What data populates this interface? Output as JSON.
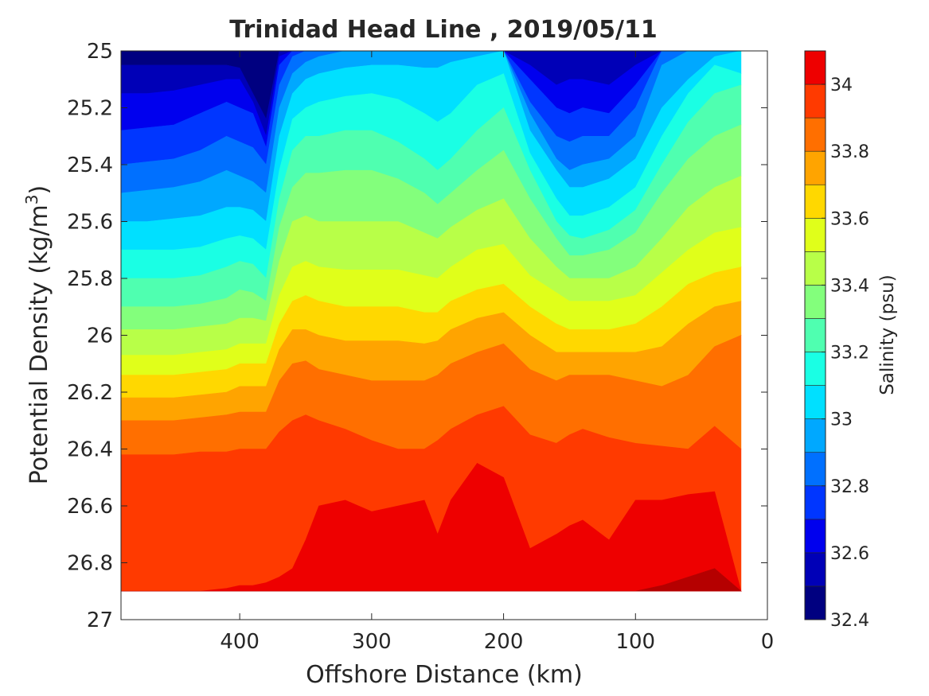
{
  "chart_data": {
    "type": "filled-contour",
    "title": "Trinidad Head Line , 2019/05/11",
    "xlabel": "Offshore Distance (km)",
    "ylabel": "Potential Density (kg/m",
    "ylabel_sup": "3",
    "ylabel_close": ")",
    "xlim": [
      490,
      0
    ],
    "ylim": [
      25,
      27
    ],
    "x_reversed": true,
    "y_reversed": true,
    "x_ticks": [
      400,
      300,
      200,
      100,
      0
    ],
    "y_ticks": [
      25,
      25.2,
      25.4,
      25.6,
      25.8,
      26,
      26.2,
      26.4,
      26.6,
      26.8,
      27
    ],
    "x_tick_labels": [
      "400",
      "300",
      "200",
      "100",
      "0"
    ],
    "y_tick_labels": [
      "25",
      "25.2",
      "25.4",
      "25.6",
      "25.8",
      "26",
      "26.2",
      "26.4",
      "26.6",
      "26.8",
      "27"
    ],
    "colorbar": {
      "label": "Salinity (psu)",
      "range": [
        32.4,
        34.1
      ],
      "ticks": [
        32.4,
        32.6,
        32.8,
        33,
        33.2,
        33.4,
        33.6,
        33.8,
        34
      ],
      "tick_labels": [
        "32.4",
        "32.6",
        "32.8",
        "33",
        "33.2",
        "33.4",
        "33.6",
        "33.8",
        "34"
      ],
      "levels": [
        32.4,
        32.5,
        32.6,
        32.7,
        32.8,
        32.9,
        33.0,
        33.1,
        33.2,
        33.3,
        33.4,
        33.5,
        33.6,
        33.7,
        33.8,
        33.9,
        34.0,
        34.1
      ],
      "colormap": [
        "#000080",
        "#0000b7",
        "#0000ee",
        "#0036ff",
        "#0070ff",
        "#00a8ff",
        "#00e0ff",
        "#1affe4",
        "#4fffb0",
        "#83ff7c",
        "#b8ff48",
        "#e0ff1a",
        "#ffd800",
        "#ffa400",
        "#ff6f00",
        "#ff3a00",
        "#ee0000",
        "#b50000"
      ]
    },
    "data_extent": {
      "x_min": 20,
      "x_max": 490,
      "y_max": 26.9
    },
    "stations_x": [
      490,
      470,
      450,
      430,
      410,
      400,
      390,
      380,
      370,
      360,
      350,
      340,
      320,
      300,
      280,
      260,
      250,
      240,
      220,
      200,
      180,
      160,
      150,
      140,
      120,
      100,
      80,
      60,
      40,
      20
    ],
    "contours": [
      {
        "level": 32.5,
        "y": [
          25.05,
          25.05,
          25.05,
          25.05,
          25.05,
          25.06,
          25.15,
          25.24,
          25.0,
          25.0,
          25.0,
          25.0,
          25.0,
          25.0,
          25.0,
          25.0,
          25.0,
          25.0,
          25.0,
          25.0,
          25.0,
          25.0,
          25.0,
          25.0,
          25.0,
          25.0,
          25.0,
          25.0,
          25.0,
          25.0
        ]
      },
      {
        "level": 32.6,
        "y": [
          25.15,
          25.15,
          25.14,
          25.12,
          25.1,
          25.1,
          25.18,
          25.3,
          25.02,
          25.0,
          25.0,
          25.0,
          25.0,
          25.0,
          25.0,
          25.0,
          25.0,
          25.0,
          25.0,
          25.0,
          25.05,
          25.12,
          25.1,
          25.1,
          25.12,
          25.05,
          25.0,
          25.0,
          25.0,
          25.0
        ]
      },
      {
        "level": 32.7,
        "y": [
          25.28,
          25.27,
          25.26,
          25.22,
          25.18,
          25.2,
          25.22,
          25.34,
          25.05,
          25.0,
          25.0,
          25.0,
          25.0,
          25.0,
          25.0,
          25.0,
          25.0,
          25.0,
          25.0,
          25.0,
          25.1,
          25.2,
          25.22,
          25.2,
          25.22,
          25.12,
          25.0,
          25.0,
          25.0,
          25.0
        ]
      },
      {
        "level": 32.8,
        "y": [
          25.4,
          25.39,
          25.38,
          25.35,
          25.3,
          25.32,
          25.34,
          25.4,
          25.12,
          25.02,
          25.0,
          25.0,
          25.0,
          25.0,
          25.0,
          25.0,
          25.0,
          25.0,
          25.0,
          25.0,
          25.18,
          25.3,
          25.32,
          25.3,
          25.3,
          25.2,
          25.0,
          25.0,
          25.0,
          25.0
        ]
      },
      {
        "level": 32.9,
        "y": [
          25.5,
          25.49,
          25.48,
          25.46,
          25.42,
          25.44,
          25.46,
          25.5,
          25.2,
          25.08,
          25.04,
          25.02,
          25.0,
          25.0,
          25.0,
          25.0,
          25.0,
          25.0,
          25.0,
          25.0,
          25.22,
          25.38,
          25.42,
          25.4,
          25.38,
          25.3,
          25.05,
          25.0,
          25.0,
          25.0
        ]
      },
      {
        "level": 33.0,
        "y": [
          25.6,
          25.6,
          25.59,
          25.58,
          25.55,
          25.55,
          25.56,
          25.6,
          25.3,
          25.15,
          25.1,
          25.08,
          25.06,
          25.05,
          25.05,
          25.06,
          25.06,
          25.04,
          25.02,
          25.0,
          25.28,
          25.42,
          25.48,
          25.48,
          25.45,
          25.38,
          25.2,
          25.1,
          25.02,
          25.0
        ]
      },
      {
        "level": 33.1,
        "y": [
          25.7,
          25.7,
          25.7,
          25.69,
          25.66,
          25.65,
          25.66,
          25.7,
          25.42,
          25.24,
          25.2,
          25.18,
          25.16,
          25.15,
          25.17,
          25.22,
          25.25,
          25.22,
          25.12,
          25.08,
          25.36,
          25.52,
          25.58,
          25.58,
          25.55,
          25.48,
          25.3,
          25.15,
          25.05,
          25.08
        ]
      },
      {
        "level": 33.2,
        "y": [
          25.8,
          25.8,
          25.8,
          25.79,
          25.76,
          25.74,
          25.75,
          25.8,
          25.52,
          25.35,
          25.3,
          25.3,
          25.28,
          25.28,
          25.32,
          25.38,
          25.42,
          25.38,
          25.28,
          25.2,
          25.42,
          25.6,
          25.65,
          25.66,
          25.63,
          25.56,
          25.4,
          25.25,
          25.15,
          25.12
        ]
      },
      {
        "level": 33.3,
        "y": [
          25.9,
          25.9,
          25.9,
          25.89,
          25.87,
          25.84,
          25.85,
          25.88,
          25.62,
          25.48,
          25.43,
          25.43,
          25.42,
          25.42,
          25.45,
          25.5,
          25.54,
          25.5,
          25.42,
          25.35,
          25.52,
          25.66,
          25.72,
          25.72,
          25.7,
          25.64,
          25.5,
          25.38,
          25.3,
          25.26
        ]
      },
      {
        "level": 33.4,
        "y": [
          25.98,
          25.98,
          25.98,
          25.97,
          25.96,
          25.94,
          25.94,
          25.95,
          25.74,
          25.6,
          25.58,
          25.6,
          25.6,
          25.6,
          25.6,
          25.64,
          25.66,
          25.62,
          25.56,
          25.52,
          25.66,
          25.76,
          25.8,
          25.8,
          25.8,
          25.76,
          25.66,
          25.55,
          25.48,
          25.44
        ]
      },
      {
        "level": 33.5,
        "y": [
          26.07,
          26.07,
          26.07,
          26.06,
          26.05,
          26.03,
          26.03,
          26.03,
          25.86,
          25.76,
          25.74,
          25.76,
          25.77,
          25.77,
          25.77,
          25.79,
          25.8,
          25.76,
          25.7,
          25.68,
          25.79,
          25.85,
          25.88,
          25.88,
          25.88,
          25.86,
          25.78,
          25.7,
          25.64,
          25.62
        ]
      },
      {
        "level": 33.6,
        "y": [
          26.14,
          26.14,
          26.14,
          26.13,
          26.12,
          26.1,
          26.1,
          26.1,
          25.96,
          25.88,
          25.86,
          25.88,
          25.9,
          25.9,
          25.9,
          25.92,
          25.92,
          25.88,
          25.84,
          25.82,
          25.9,
          25.96,
          25.98,
          25.98,
          25.98,
          25.96,
          25.9,
          25.82,
          25.78,
          25.76
        ]
      },
      {
        "level": 33.7,
        "y": [
          26.22,
          26.22,
          26.22,
          26.21,
          26.2,
          26.18,
          26.18,
          26.18,
          26.05,
          25.98,
          25.98,
          26.0,
          26.02,
          26.02,
          26.02,
          26.03,
          26.02,
          25.98,
          25.94,
          25.92,
          26.0,
          26.06,
          26.06,
          26.06,
          26.06,
          26.06,
          26.04,
          25.96,
          25.9,
          25.88
        ]
      },
      {
        "level": 33.8,
        "y": [
          26.3,
          26.3,
          26.3,
          26.29,
          26.28,
          26.27,
          26.27,
          26.27,
          26.16,
          26.1,
          26.09,
          26.12,
          26.14,
          26.16,
          26.16,
          26.16,
          26.14,
          26.1,
          26.06,
          26.03,
          26.12,
          26.16,
          26.14,
          26.14,
          26.14,
          26.16,
          26.18,
          26.14,
          26.04,
          26.0
        ]
      },
      {
        "level": 33.9,
        "y": [
          26.42,
          26.42,
          26.42,
          26.41,
          26.41,
          26.4,
          26.4,
          26.4,
          26.34,
          26.3,
          26.28,
          26.3,
          26.33,
          26.37,
          26.4,
          26.4,
          26.37,
          26.33,
          26.28,
          26.25,
          26.35,
          26.38,
          26.35,
          26.33,
          26.36,
          26.38,
          26.39,
          26.4,
          26.32,
          26.4
        ]
      },
      {
        "level": 34.0,
        "y": [
          26.9,
          26.9,
          26.9,
          26.9,
          26.89,
          26.88,
          26.88,
          26.87,
          26.85,
          26.82,
          26.72,
          26.6,
          26.58,
          26.62,
          26.6,
          26.58,
          26.7,
          26.58,
          26.45,
          26.5,
          26.75,
          26.7,
          26.67,
          26.65,
          26.72,
          26.58,
          26.58,
          26.56,
          26.55,
          26.9
        ]
      },
      {
        "level": 34.1,
        "y": [
          26.9,
          26.9,
          26.9,
          26.9,
          26.9,
          26.9,
          26.9,
          26.9,
          26.9,
          26.9,
          26.9,
          26.9,
          26.9,
          26.9,
          26.9,
          26.9,
          26.9,
          26.9,
          26.9,
          26.9,
          26.9,
          26.9,
          26.9,
          26.9,
          26.9,
          26.9,
          26.88,
          26.85,
          26.82,
          26.9
        ]
      }
    ]
  }
}
